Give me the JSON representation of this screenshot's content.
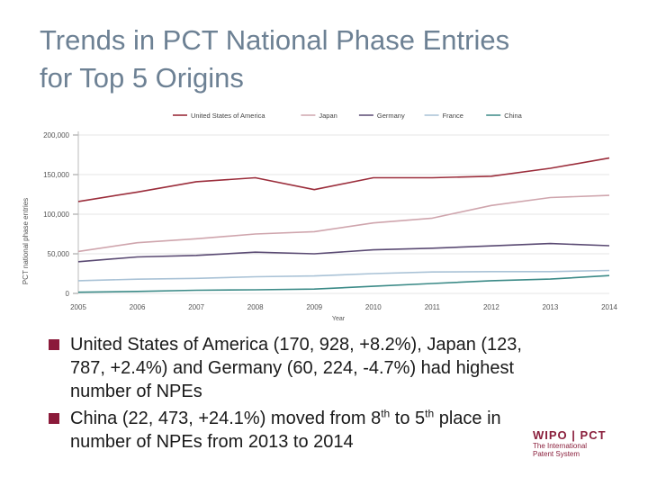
{
  "title": {
    "line1": "Trends in PCT National Phase Entries",
    "line2": "for Top 5 Origins"
  },
  "bullets": [
    {
      "text": "United States of America (170, 928, +8.2%), Japan (123, 787, +2.4%) and Germany (60, 224, -4.7%) had highest number of NPEs"
    },
    {
      "pre": "China (22, 473, +24.1%) moved from 8",
      "sup1": "th",
      "mid": " to 5",
      "sup2": "th",
      "post": " place in number of NPEs from 2013 to 2014"
    }
  ],
  "logo": {
    "main": "WIPO | PCT",
    "sub1": "The International",
    "sub2": "Patent System"
  },
  "colors": {
    "title": "#6d8194",
    "bullet": "#8b1a3a",
    "logo": "#8a1f3c"
  },
  "chart_data": {
    "type": "line",
    "title": "",
    "xlabel": "Year",
    "ylabel": "PCT national phase entries",
    "x": [
      "2005",
      "2006",
      "2007",
      "2008",
      "2009",
      "2010",
      "2011",
      "2012",
      "2013",
      "2014"
    ],
    "ylim": [
      0,
      200000
    ],
    "yticks": [
      0,
      50000,
      100000,
      150000,
      200000
    ],
    "ytick_labels": [
      "0",
      "50,000",
      "100,000",
      "150,000",
      "200,000"
    ],
    "legend_position": "top",
    "series": [
      {
        "name": "United States of America",
        "color": "#9b2d3b",
        "values": [
          116000,
          128000,
          141000,
          146000,
          131000,
          146000,
          146000,
          148000,
          158000,
          170928
        ]
      },
      {
        "name": "Japan",
        "color": "#cfa5ad",
        "values": [
          53000,
          64000,
          69000,
          75000,
          78000,
          89000,
          95000,
          111000,
          121000,
          123787
        ]
      },
      {
        "name": "Germany",
        "color": "#5a4a73",
        "values": [
          40000,
          46000,
          48000,
          52000,
          50000,
          55000,
          57000,
          60000,
          63000,
          60224
        ]
      },
      {
        "name": "France",
        "color": "#a9c2d6",
        "values": [
          16000,
          18000,
          19000,
          21000,
          22000,
          25000,
          27000,
          27500,
          27500,
          29000
        ]
      },
      {
        "name": "China",
        "color": "#3b8a87",
        "values": [
          1500,
          2500,
          4000,
          4500,
          5500,
          9000,
          12500,
          16000,
          18100,
          22473
        ]
      }
    ]
  }
}
